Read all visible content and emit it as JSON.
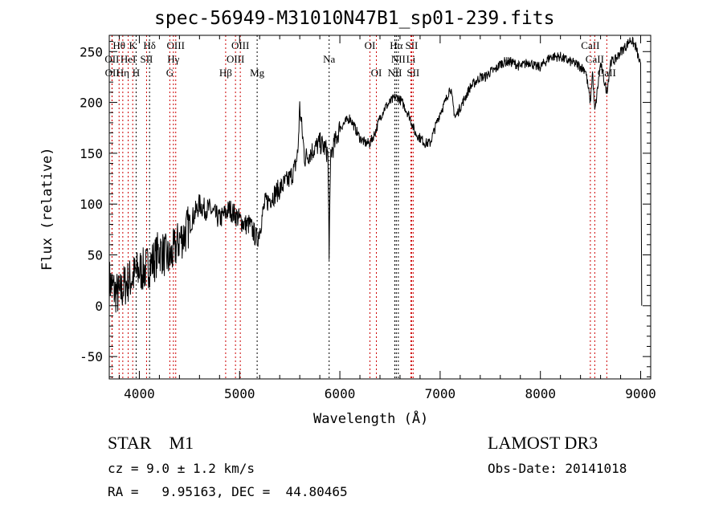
{
  "chart_data": {
    "type": "line",
    "title": "spec-56949-M31010N47B1_sp01-239.fits",
    "xlabel": "Wavelength (Å)",
    "ylabel": "Flux (relative)",
    "xlim": [
      3700,
      9100
    ],
    "ylim": [
      -72,
      266
    ],
    "xticks": [
      4000,
      5000,
      6000,
      7000,
      8000,
      9000
    ],
    "yticks": [
      -50,
      0,
      50,
      100,
      150,
      200,
      250
    ],
    "grid": false,
    "series": [
      {
        "name": "spectrum",
        "x": [
          3700,
          3750,
          3800,
          3850,
          3900,
          3950,
          4000,
          4050,
          4100,
          4150,
          4200,
          4250,
          4300,
          4350,
          4400,
          4450,
          4500,
          4550,
          4600,
          4650,
          4700,
          4750,
          4800,
          4850,
          4900,
          4950,
          5000,
          5050,
          5100,
          5150,
          5175,
          5200,
          5250,
          5300,
          5350,
          5400,
          5450,
          5500,
          5550,
          5580,
          5600,
          5650,
          5700,
          5750,
          5800,
          5850,
          5880,
          5893,
          5910,
          5950,
          6000,
          6050,
          6100,
          6150,
          6200,
          6250,
          6300,
          6350,
          6400,
          6450,
          6500,
          6550,
          6580,
          6620,
          6650,
          6700,
          6750,
          6800,
          6850,
          6900,
          6950,
          7000,
          7050,
          7100,
          7150,
          7200,
          7250,
          7300,
          7350,
          7400,
          7450,
          7500,
          7550,
          7600,
          7650,
          7700,
          7750,
          7800,
          7850,
          7900,
          7950,
          8000,
          8050,
          8100,
          8150,
          8200,
          8250,
          8300,
          8350,
          8400,
          8450,
          8498,
          8520,
          8542,
          8600,
          8662,
          8700,
          8750,
          8800,
          8850,
          8900,
          8950,
          9000,
          9010
        ],
        "flux": [
          25,
          15,
          10,
          20,
          25,
          30,
          35,
          35,
          40,
          45,
          55,
          50,
          45,
          55,
          65,
          70,
          80,
          90,
          100,
          95,
          95,
          90,
          85,
          90,
          95,
          90,
          85,
          80,
          80,
          70,
          65,
          75,
          100,
          105,
          110,
          115,
          120,
          125,
          135,
          150,
          195,
          145,
          150,
          155,
          160,
          155,
          150,
          55,
          150,
          160,
          175,
          180,
          185,
          175,
          165,
          160,
          160,
          170,
          185,
          195,
          200,
          205,
          205,
          200,
          195,
          185,
          170,
          165,
          160,
          160,
          175,
          190,
          200,
          215,
          185,
          195,
          205,
          215,
          220,
          225,
          225,
          230,
          232,
          238,
          240,
          240,
          238,
          235,
          238,
          240,
          235,
          235,
          240,
          245,
          245,
          245,
          242,
          240,
          238,
          235,
          232,
          200,
          230,
          190,
          238,
          210,
          240,
          242,
          250,
          255,
          262,
          255,
          235,
          0
        ]
      }
    ],
    "lines": [
      {
        "label": "Hθ",
        "wl": 3798,
        "row": 1,
        "color": "#cc0000"
      },
      {
        "label": "K",
        "wl": 3934,
        "row": 1,
        "color": "#cc0000"
      },
      {
        "label": "Hδ",
        "wl": 4102,
        "row": 1,
        "color": "#000000"
      },
      {
        "label": "OIII",
        "wl": 4363,
        "row": 1,
        "color": "#cc0000"
      },
      {
        "label": "OIII",
        "wl": 5007,
        "row": 1,
        "color": "#cc0000"
      },
      {
        "label": "OI",
        "wl": 6300,
        "row": 1,
        "color": "#cc0000"
      },
      {
        "label": "Hα",
        "wl": 6563,
        "row": 1,
        "color": "#000000"
      },
      {
        "label": "SII",
        "wl": 6716,
        "row": 1,
        "color": "#cc0000"
      },
      {
        "label": "CaII",
        "wl": 8498,
        "row": 1,
        "color": "#cc0000"
      },
      {
        "label": "OII",
        "wl": 3727,
        "row": 2,
        "color": "#cc0000"
      },
      {
        "label": "HeI",
        "wl": 3889,
        "row": 2,
        "color": "#cc0000"
      },
      {
        "label": "SII",
        "wl": 4072,
        "row": 2,
        "color": "#cc0000"
      },
      {
        "label": "Hγ",
        "wl": 4340,
        "row": 2,
        "color": "#cc0000"
      },
      {
        "label": "OIII",
        "wl": 4959,
        "row": 2,
        "color": "#cc0000"
      },
      {
        "label": "Na",
        "wl": 5893,
        "row": 2,
        "color": "#000000"
      },
      {
        "label": "NII",
        "wl": 6583,
        "row": 2,
        "color": "#000000"
      },
      {
        "label": "Li",
        "wl": 6708,
        "row": 2,
        "color": "#cc0000"
      },
      {
        "label": "CaII",
        "wl": 8542,
        "row": 2,
        "color": "#cc0000"
      },
      {
        "label": "OII",
        "wl": 3729,
        "row": 3,
        "color": "#cc0000"
      },
      {
        "label": "Hη",
        "wl": 3835,
        "row": 3,
        "color": "#cc0000"
      },
      {
        "label": "H",
        "wl": 3968,
        "row": 3,
        "color": "#000000"
      },
      {
        "label": "G",
        "wl": 4304,
        "row": 3,
        "color": "#cc0000"
      },
      {
        "label": "Hβ",
        "wl": 4861,
        "row": 3,
        "color": "#cc0000"
      },
      {
        "label": "Mg",
        "wl": 5175,
        "row": 3,
        "color": "#000000"
      },
      {
        "label": "OI",
        "wl": 6364,
        "row": 3,
        "color": "#cc0000"
      },
      {
        "label": "NII",
        "wl": 6548,
        "row": 3,
        "color": "#000000"
      },
      {
        "label": "SII",
        "wl": 6731,
        "row": 3,
        "color": "#cc0000"
      },
      {
        "label": "CaII",
        "wl": 8662,
        "row": 3,
        "color": "#cc0000"
      }
    ]
  },
  "info": {
    "class": "STAR    M1",
    "cz": "cz = 9.0 ± 1.2 km/s",
    "radec": "RA =   9.95163, DEC =  44.80465",
    "survey": "LAMOST DR3",
    "obsdate": "Obs-Date: 20141018"
  }
}
